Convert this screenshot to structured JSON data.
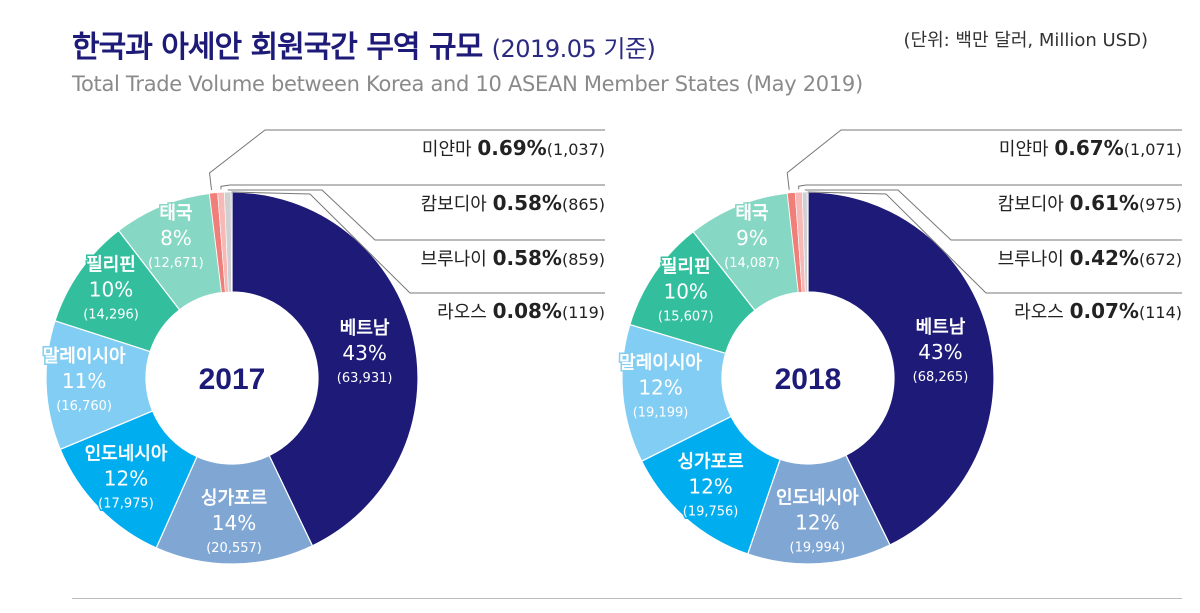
{
  "header": {
    "title": "한국과 아세안 회원국간 무역 규모",
    "title_suffix": "(2019.05 기준)",
    "unit": "(단위: 백만 달러, Million USD)",
    "subtitle": "Total Trade Volume between Korea and 10 ASEAN Member States (May 2019)"
  },
  "colors": [
    "#1e1b78",
    "#80a6d3",
    "#00aeef",
    "#82cdf3",
    "#33bf9e",
    "#86d8c4",
    "#f07f7a",
    "#f7b9b8",
    "#d0d0d0",
    "#8a8a8a"
  ],
  "chart_data": [
    {
      "type": "pie",
      "variant": "donut",
      "center_label": "2017",
      "slices": [
        {
          "name": "베트남",
          "percent": "43%",
          "value": 63931,
          "value_label": "(63,931)"
        },
        {
          "name": "싱가포르",
          "percent": "14%",
          "value": 20557,
          "value_label": "(20,557)"
        },
        {
          "name": "인도네시아",
          "percent": "12%",
          "value": 17975,
          "value_label": "(17,975)"
        },
        {
          "name": "말레이시아",
          "percent": "11%",
          "value": 16760,
          "value_label": "(16,760)"
        },
        {
          "name": "필리핀",
          "percent": "10%",
          "value": 14296,
          "value_label": "(14,296)"
        },
        {
          "name": "태국",
          "percent": "8%",
          "value": 12671,
          "value_label": "(12,671)"
        },
        {
          "name": "미얀마",
          "percent": "0.69%",
          "value": 1037,
          "value_label": "(1,037)",
          "callout": true
        },
        {
          "name": "캄보디아",
          "percent": "0.58%",
          "value": 865,
          "value_label": "(865)",
          "callout": true
        },
        {
          "name": "브루나이",
          "percent": "0.58%",
          "value": 859,
          "value_label": "(859)",
          "callout": true
        },
        {
          "name": "라오스",
          "percent": "0.08%",
          "value": 119,
          "value_label": "(119)",
          "callout": true
        }
      ]
    },
    {
      "type": "pie",
      "variant": "donut",
      "center_label": "2018",
      "slices": [
        {
          "name": "베트남",
          "percent": "43%",
          "value": 68265,
          "value_label": "(68,265)"
        },
        {
          "name": "인도네시아",
          "percent": "12%",
          "value": 19994,
          "value_label": "(19,994)"
        },
        {
          "name": "싱가포르",
          "percent": "12%",
          "value": 19756,
          "value_label": "(19,756)"
        },
        {
          "name": "말레이시아",
          "percent": "12%",
          "value": 19199,
          "value_label": "(19,199)"
        },
        {
          "name": "필리핀",
          "percent": "10%",
          "value": 15607,
          "value_label": "(15,607)"
        },
        {
          "name": "태국",
          "percent": "9%",
          "value": 14087,
          "value_label": "(14,087)"
        },
        {
          "name": "미얀마",
          "percent": "0.67%",
          "value": 1071,
          "value_label": "(1,071)",
          "callout": true
        },
        {
          "name": "캄보디아",
          "percent": "0.61%",
          "value": 975,
          "value_label": "(975)",
          "callout": true
        },
        {
          "name": "브루나이",
          "percent": "0.42%",
          "value": 672,
          "value_label": "(672)",
          "callout": true
        },
        {
          "name": "라오스",
          "percent": "0.07%",
          "value": 114,
          "value_label": "(114)",
          "callout": true
        }
      ]
    }
  ]
}
